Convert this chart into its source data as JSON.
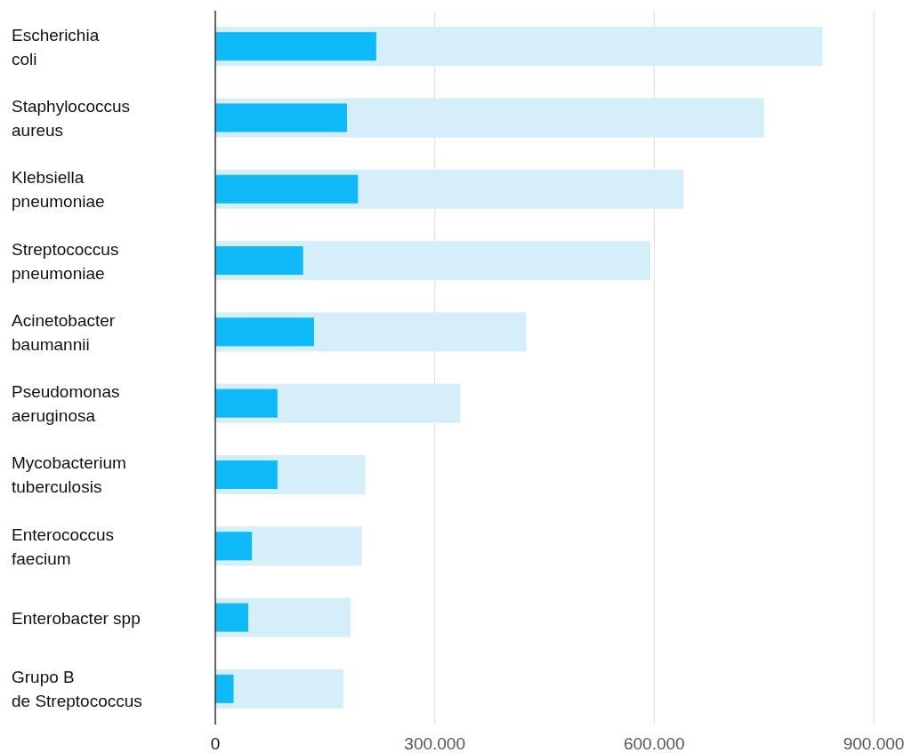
{
  "chart_data": {
    "type": "bar",
    "orientation": "horizontal",
    "categories": [
      "Escherichia\ncoli",
      "Staphylococcus\naureus",
      "Klebsiella\npneumoniae",
      "Streptococcus\npneumoniae",
      "Acinetobacter\nbaumannii",
      "Pseudomonas\naeruginosa",
      "Mycobacterium\ntuberculosis",
      "Enterococcus\nfaecium",
      "Enterobacter spp",
      "Grupo B\nde Streptococcus"
    ],
    "series": [
      {
        "color": "#d4eff9",
        "values": [
          830000,
          750000,
          640000,
          595000,
          425000,
          335000,
          205000,
          200000,
          185000,
          175000
        ]
      },
      {
        "color": "#10baf9",
        "values": [
          220000,
          180000,
          195000,
          120000,
          135000,
          85000,
          85000,
          50000,
          45000,
          25000
        ]
      }
    ],
    "xlim": [
      0,
      900000
    ],
    "xticks": [
      0,
      {
        "value": 300000,
        "label": "300.000"
      },
      {
        "value": 600000,
        "label": "600.000"
      },
      {
        "value": 900000,
        "label": "900.000"
      }
    ],
    "grid": "x"
  }
}
